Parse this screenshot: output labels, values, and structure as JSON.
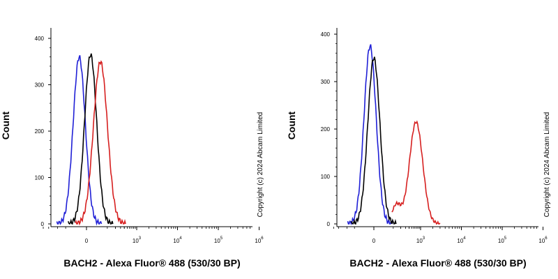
{
  "chart_data": [
    {
      "type": "line",
      "xlabel": "BACH2 - Alexa Fluor® 488 (530/30 BP)",
      "ylabel": "Count",
      "copyright": "Copyright (c) 2024 Abcam Limited",
      "x_scale": "logicle",
      "ylim": [
        0,
        400
      ],
      "y_ticks": [
        0,
        100,
        200,
        300,
        400
      ],
      "x_ticks": [
        {
          "value": 0,
          "base": "0",
          "exp": ""
        },
        {
          "value": 1000,
          "base": "10",
          "exp": "3"
        },
        {
          "value": 10000,
          "base": "10",
          "exp": "4"
        },
        {
          "value": 100000,
          "base": "10",
          "exp": "5"
        },
        {
          "value": 1000000,
          "base": "10",
          "exp": "6"
        }
      ],
      "series": [
        {
          "color": "#1f1fd6",
          "peak_x": -20,
          "peak_y": 360,
          "width": 20
        },
        {
          "color": "#000000",
          "peak_x": 10,
          "peak_y": 365,
          "width": 20
        },
        {
          "color": "#d61f1f",
          "peak_x": 50,
          "peak_y": 350,
          "width": 23
        }
      ]
    },
    {
      "type": "line",
      "xlabel": "BACH2 - Alexa Fluor® 488 (530/30 BP)",
      "ylabel": "Count",
      "copyright": "Copyright (c) 2024 Abcam Limited",
      "x_scale": "logicle",
      "ylim": [
        0,
        420
      ],
      "y_ticks": [
        0,
        100,
        200,
        300,
        400
      ],
      "x_ticks": [
        {
          "value": 0,
          "base": "0",
          "exp": ""
        },
        {
          "value": 1000,
          "base": "10",
          "exp": "3"
        },
        {
          "value": 10000,
          "base": "10",
          "exp": "4"
        },
        {
          "value": 100000,
          "base": "10",
          "exp": "5"
        },
        {
          "value": 1000000,
          "base": "10",
          "exp": "6"
        }
      ],
      "series": [
        {
          "color": "#1f1fd6",
          "peak_x": -10,
          "peak_y": 375,
          "width": 20
        },
        {
          "color": "#000000",
          "peak_x": 0,
          "peak_y": 350,
          "width": 20
        },
        {
          "color": "#d61f1f",
          "peak_x": 700,
          "peak_y": 215,
          "width": 22
        }
      ]
    }
  ]
}
